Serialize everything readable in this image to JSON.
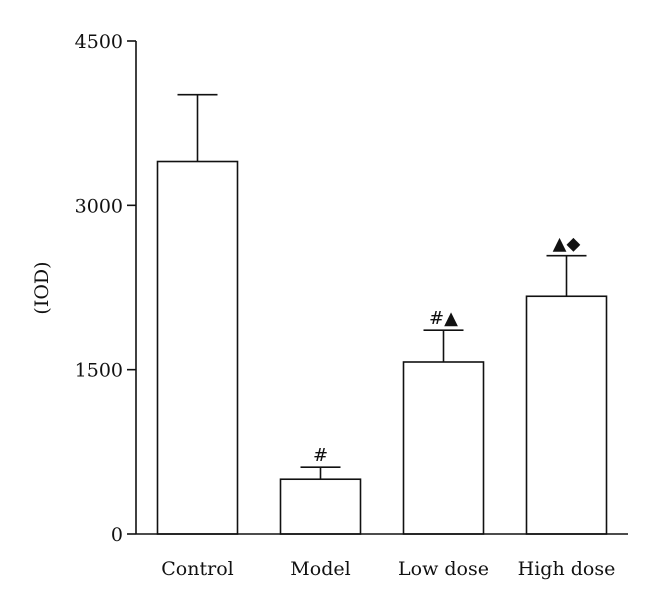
{
  "chart_data": {
    "type": "bar",
    "categories": [
      "Control",
      "Model",
      "Low dose",
      "High dose"
    ],
    "values": [
      3400,
      500,
      1570,
      2170
    ],
    "errors": [
      610,
      110,
      290,
      370
    ],
    "markers": [
      "",
      "#",
      "#▲",
      "▲◆"
    ],
    "ylabel": "(IOD)",
    "xlabel": "",
    "ylim": [
      0,
      4500
    ],
    "yticks": [
      "0",
      "1500",
      "3000",
      "4500"
    ],
    "ytick_values": [
      0,
      1500,
      3000,
      4500
    ],
    "grid": false,
    "legend": "none",
    "colors": {
      "bar_fill": "#ffffff",
      "stroke": "#111111"
    }
  }
}
